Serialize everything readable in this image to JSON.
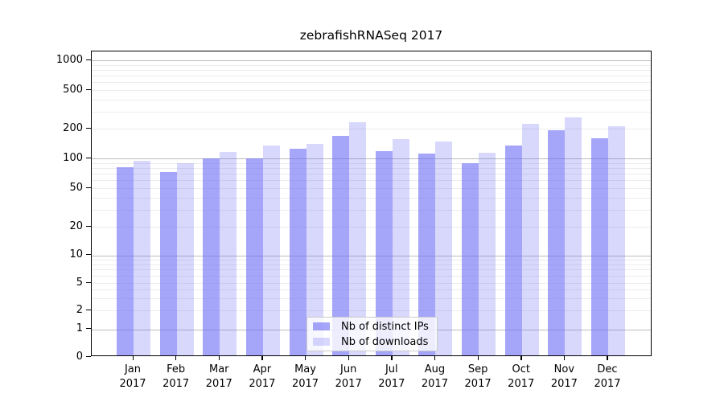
{
  "chart_data": {
    "type": "bar",
    "title": "zebrafishRNASeq 2017",
    "categories": [
      "Jan 2017",
      "Feb 2017",
      "Mar 2017",
      "Apr 2017",
      "May 2017",
      "Jun 2017",
      "Jul 2017",
      "Aug 2017",
      "Sep 2017",
      "Oct 2017",
      "Nov 2017",
      "Dec 2017"
    ],
    "series": [
      {
        "name": "Nb of distinct IPs",
        "color": "rgba(110,110,245,0.62)",
        "values": [
          81,
          73,
          100,
          100,
          126,
          170,
          119,
          111,
          89,
          136,
          193,
          161
        ]
      },
      {
        "name": "Nb of downloads",
        "color": "rgba(110,110,245,0.27)",
        "values": [
          95,
          89,
          116,
          134,
          140,
          235,
          157,
          147,
          114,
          224,
          262,
          211
        ]
      }
    ],
    "xlabel": "",
    "ylabel": "",
    "yscale": "symlog",
    "yticks": [
      0,
      1,
      2,
      5,
      10,
      20,
      50,
      100,
      200,
      500,
      1000
    ],
    "ylim": [
      0,
      1500
    ],
    "grid": true,
    "legend_position": "inside-bottom-center",
    "colors": {
      "grid_minor": "#ececec",
      "grid_major": "#bcbcbc",
      "axis": "#000000",
      "text": "#000000",
      "background": "#ffffff"
    }
  }
}
